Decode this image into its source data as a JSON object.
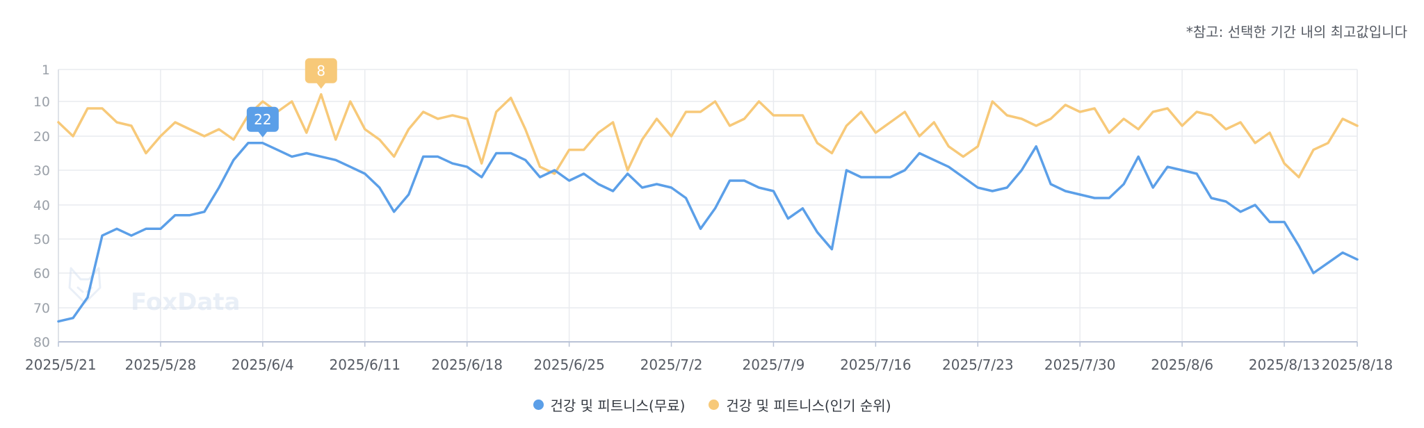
{
  "note": "*참고: 선택한 기간 내의 최고값입니다",
  "watermark": "FoxData",
  "colors": {
    "blue": "#5b9fe8",
    "orange": "#f7c979",
    "grid": "#e9ebef",
    "axis": "#b9c2d6"
  },
  "legend": [
    {
      "label": "건강 및 피트니스(무료)",
      "color": "#5b9fe8"
    },
    {
      "label": "건강 및 피트니스(인기 순위)",
      "color": "#f7c979"
    }
  ],
  "chart_data": {
    "type": "line",
    "y_reversed": true,
    "ylim": [
      1,
      80
    ],
    "yticks": [
      "1",
      "10",
      "20",
      "30",
      "40",
      "50",
      "60",
      "70",
      "80"
    ],
    "x_tick_labels": [
      "2025/5/21",
      "2025/5/28",
      "2025/6/4",
      "2025/6/11",
      "2025/6/18",
      "2025/6/25",
      "2025/7/2",
      "2025/7/9",
      "2025/7/16",
      "2025/7/23",
      "2025/7/30",
      "2025/8/6",
      "2025/8/13",
      "2025/8/18"
    ],
    "x_tick_days": [
      0,
      7,
      14,
      21,
      28,
      35,
      42,
      49,
      56,
      63,
      70,
      77,
      84,
      89
    ],
    "grid": true,
    "legend_position": "bottom-center",
    "callouts": [
      {
        "series": 0,
        "day": 14,
        "label": "22"
      },
      {
        "series": 1,
        "day": 18,
        "label": "8"
      }
    ],
    "series": [
      {
        "name": "건강 및 피트니스(무료)",
        "color": "#5b9fe8",
        "values": [
          74,
          73,
          67,
          49,
          47,
          49,
          47,
          47,
          43,
          43,
          42,
          35,
          27,
          22,
          22,
          24,
          26,
          25,
          26,
          27,
          29,
          31,
          35,
          42,
          37,
          26,
          26,
          28,
          29,
          32,
          25,
          25,
          27,
          32,
          30,
          33,
          31,
          34,
          36,
          31,
          35,
          34,
          35,
          38,
          47,
          41,
          33,
          33,
          35,
          36,
          44,
          41,
          48,
          53,
          30,
          32,
          32,
          32,
          30,
          25,
          27,
          29,
          32,
          35,
          36,
          35,
          30,
          23,
          34,
          36,
          37,
          38,
          38,
          34,
          26,
          35,
          29,
          30,
          31,
          38,
          39,
          42,
          40,
          45,
          45,
          52,
          60,
          57,
          54,
          56
        ]
      },
      {
        "name": "건강 및 피트니스(인기 순위)",
        "color": "#f7c979",
        "values": [
          16,
          20,
          12,
          12,
          16,
          17,
          25,
          20,
          16,
          18,
          20,
          18,
          21,
          14,
          10,
          13,
          10,
          19,
          8,
          21,
          10,
          18,
          21,
          26,
          18,
          13,
          15,
          14,
          15,
          28,
          13,
          9,
          18,
          29,
          31,
          24,
          24,
          19,
          16,
          30,
          21,
          15,
          20,
          13,
          13,
          10,
          17,
          15,
          10,
          14,
          14,
          14,
          22,
          25,
          17,
          13,
          19,
          16,
          13,
          20,
          16,
          23,
          26,
          23,
          10,
          14,
          15,
          17,
          15,
          11,
          13,
          12,
          19,
          15,
          18,
          13,
          12,
          17,
          13,
          14,
          18,
          16,
          22,
          19,
          28,
          32,
          24,
          22,
          15,
          17
        ]
      }
    ]
  }
}
